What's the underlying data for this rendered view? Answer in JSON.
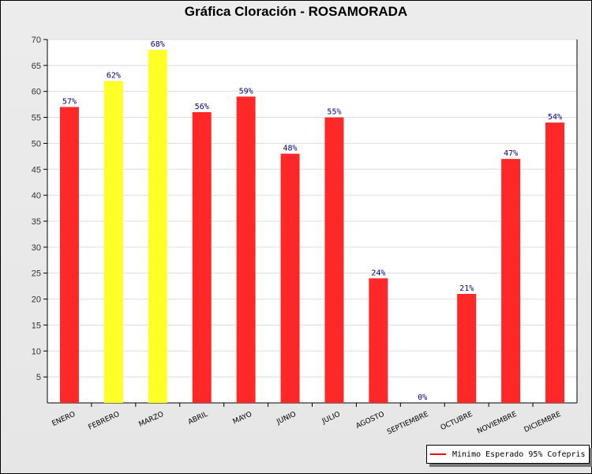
{
  "chart_data": {
    "type": "bar",
    "title": "Gráfica Cloración - ROSAMORADA",
    "categories": [
      "ENERO",
      "FEBRERO",
      "MARZO",
      "ABRIL",
      "MAYO",
      "JUNIO",
      "JULIO",
      "AGOSTO",
      "SEPTIEMBRE",
      "OCTUBRE",
      "NOVIEMBRE",
      "DICIEMBRE"
    ],
    "values": [
      57,
      62,
      68,
      56,
      59,
      48,
      55,
      24,
      0,
      21,
      47,
      54
    ],
    "data_labels": [
      "57%",
      "62%",
      "68%",
      "56%",
      "59%",
      "48%",
      "55%",
      "24%",
      "0%",
      "21%",
      "47%",
      "54%"
    ],
    "bar_colors": [
      "#ff2828",
      "#ffff28",
      "#ffff28",
      "#ff2828",
      "#ff2828",
      "#ff2828",
      "#ff2828",
      "#ff2828",
      "#ff2828",
      "#ff2828",
      "#ff2828",
      "#ff2828"
    ],
    "ylim": [
      0,
      70
    ],
    "yticks": [
      5,
      10,
      15,
      20,
      25,
      30,
      35,
      40,
      45,
      50,
      55,
      60,
      65,
      70
    ],
    "grid": true,
    "label_color": "#000080",
    "legend": {
      "position": "bottom-right",
      "entries": [
        {
          "name": "Minimo Esperado 95% Cofepris",
          "color": "#ff0000"
        }
      ]
    }
  }
}
